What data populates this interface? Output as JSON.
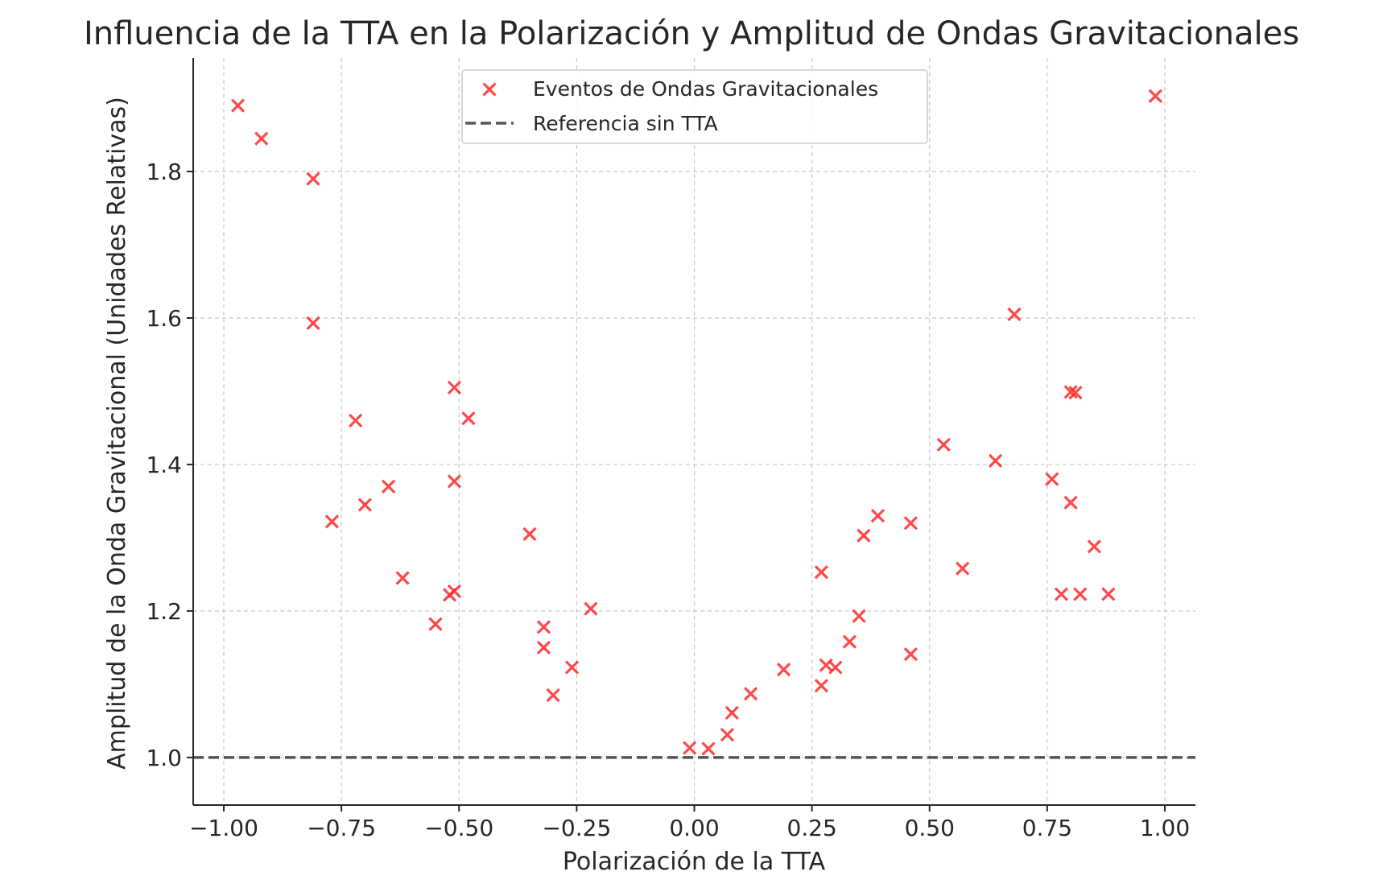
{
  "chart_data": {
    "type": "scatter",
    "title": "Influencia de la TTA en la Polarización y Amplitud de Ondas Gravitacionales",
    "xlabel": "Polarización de la TTA",
    "ylabel": "Amplitud de la Onda Gravitacional (Unidades Relativas)",
    "xlim": [
      -1.065,
      1.065
    ],
    "ylim": [
      0.935,
      1.955
    ],
    "xticks": [
      -1.0,
      -0.75,
      -0.5,
      -0.25,
      0.0,
      0.25,
      0.5,
      0.75,
      1.0
    ],
    "xtick_labels": [
      "−1.00",
      "−0.75",
      "−0.50",
      "−0.25",
      "0.00",
      "0.25",
      "0.50",
      "0.75",
      "1.00"
    ],
    "yticks": [
      1.0,
      1.2,
      1.4,
      1.6,
      1.8
    ],
    "ytick_labels": [
      "1.0",
      "1.2",
      "1.4",
      "1.6",
      "1.8"
    ],
    "grid": true,
    "legend_position": "top-center",
    "series": [
      {
        "name": "Eventos de Ondas Gravitacionales",
        "kind": "scatter",
        "marker": "x",
        "color": "#ff2a2a",
        "points": [
          [
            -0.97,
            1.89
          ],
          [
            -0.92,
            1.845
          ],
          [
            -0.81,
            1.79
          ],
          [
            -0.81,
            1.593
          ],
          [
            -0.72,
            1.46
          ],
          [
            -0.77,
            1.322
          ],
          [
            -0.7,
            1.345
          ],
          [
            -0.65,
            1.37
          ],
          [
            -0.62,
            1.245
          ],
          [
            -0.55,
            1.182
          ],
          [
            -0.52,
            1.222
          ],
          [
            -0.51,
            1.227
          ],
          [
            -0.51,
            1.505
          ],
          [
            -0.51,
            1.377
          ],
          [
            -0.48,
            1.463
          ],
          [
            -0.35,
            1.305
          ],
          [
            -0.32,
            1.178
          ],
          [
            -0.32,
            1.15
          ],
          [
            -0.3,
            1.085
          ],
          [
            -0.26,
            1.123
          ],
          [
            -0.22,
            1.203
          ],
          [
            -0.01,
            1.013
          ],
          [
            0.03,
            1.012
          ],
          [
            0.07,
            1.031
          ],
          [
            0.08,
            1.061
          ],
          [
            0.12,
            1.087
          ],
          [
            0.19,
            1.12
          ],
          [
            0.27,
            1.098
          ],
          [
            0.28,
            1.126
          ],
          [
            0.3,
            1.123
          ],
          [
            0.27,
            1.253
          ],
          [
            0.33,
            1.158
          ],
          [
            0.35,
            1.193
          ],
          [
            0.36,
            1.303
          ],
          [
            0.39,
            1.33
          ],
          [
            0.46,
            1.32
          ],
          [
            0.46,
            1.141
          ],
          [
            0.53,
            1.427
          ],
          [
            0.57,
            1.258
          ],
          [
            0.64,
            1.405
          ],
          [
            0.68,
            1.605
          ],
          [
            0.76,
            1.38
          ],
          [
            0.78,
            1.223
          ],
          [
            0.8,
            1.348
          ],
          [
            0.8,
            1.499
          ],
          [
            0.81,
            1.498
          ],
          [
            0.82,
            1.223
          ],
          [
            0.85,
            1.288
          ],
          [
            0.88,
            1.223
          ],
          [
            0.98,
            1.903
          ]
        ]
      },
      {
        "name": "Referencia sin TTA",
        "kind": "hline",
        "y": 1.0,
        "color": "#555555",
        "dash": "dashed"
      }
    ]
  }
}
